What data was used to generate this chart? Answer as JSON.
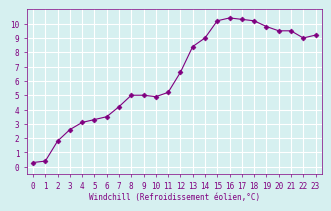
{
  "x": [
    0,
    1,
    2,
    3,
    4,
    5,
    6,
    7,
    8,
    9,
    10,
    11,
    12,
    13,
    14,
    15,
    16,
    17,
    18,
    19,
    20,
    21,
    22,
    23
  ],
  "y": [
    0.3,
    0.4,
    1.8,
    2.6,
    3.1,
    3.3,
    3.5,
    4.2,
    5.0,
    5.0,
    4.9,
    5.2,
    6.6,
    8.4,
    9.0,
    10.2,
    10.4,
    10.3,
    10.2,
    9.8,
    9.5,
    9.5,
    9.0,
    9.2
  ],
  "line_color": "#800080",
  "marker": "D",
  "marker_size": 2.5,
  "bg_color": "#d6f0f0",
  "grid_color": "#ffffff",
  "xlabel": "Windchill (Refroidissement éolien,°C)",
  "xlabel_color": "#800080",
  "tick_color": "#800080",
  "xlim": [
    -0.5,
    23.5
  ],
  "ylim": [
    -0.5,
    11.0
  ],
  "yticks": [
    0,
    1,
    2,
    3,
    4,
    5,
    6,
    7,
    8,
    9,
    10
  ],
  "xticks": [
    0,
    1,
    2,
    3,
    4,
    5,
    6,
    7,
    8,
    9,
    10,
    11,
    12,
    13,
    14,
    15,
    16,
    17,
    18,
    19,
    20,
    21,
    22,
    23
  ],
  "spine_color": "#800080",
  "font_size": 5.5,
  "xlabel_font_size": 5.5
}
